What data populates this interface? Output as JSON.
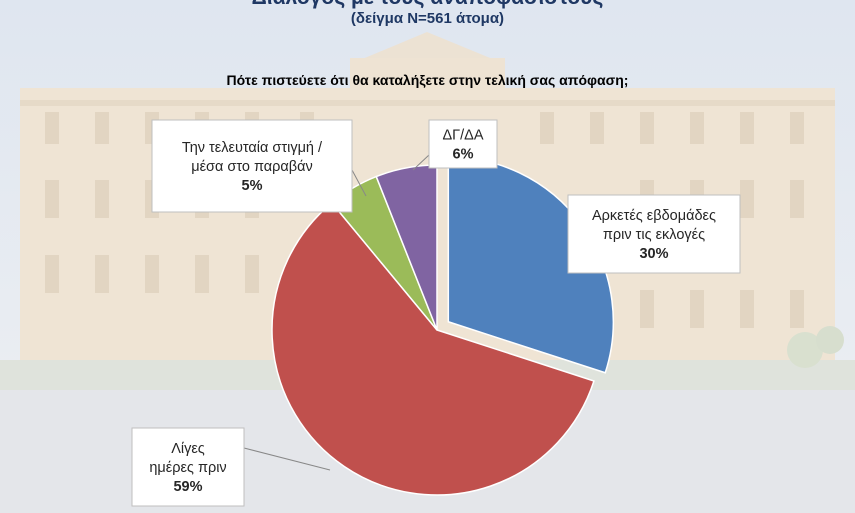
{
  "header": {
    "title": "Διάλογος με τους αναποφάσιστους",
    "subtitle": "(δείγμα N=561 άτομα)"
  },
  "chart_data": {
    "type": "pie",
    "title": "Πότε πιστεύετε ότι θα καταλήξετε στην τελική σας απόφαση;",
    "slices": [
      {
        "label_lines": [
          "Αρκετές εβδομάδες",
          "πριν τις εκλογές"
        ],
        "pct_label": "30%",
        "value": 30,
        "color": "#4f81bd",
        "exploded": true
      },
      {
        "label_lines": [
          "Λίγες",
          "ημέρες πριν"
        ],
        "pct_label": "59%",
        "value": 59,
        "color": "#c0504d",
        "exploded": false
      },
      {
        "label_lines": [
          "Την τελευταία στιγμή /",
          "μέσα στο παραβάν"
        ],
        "pct_label": "5%",
        "value": 5,
        "color": "#9bbb59",
        "exploded": false
      },
      {
        "label_lines": [
          "ΔΓ/ΔΑ"
        ],
        "pct_label": "6%",
        "value": 6,
        "color": "#8064a2",
        "exploded": false
      }
    ],
    "legend": "none"
  }
}
